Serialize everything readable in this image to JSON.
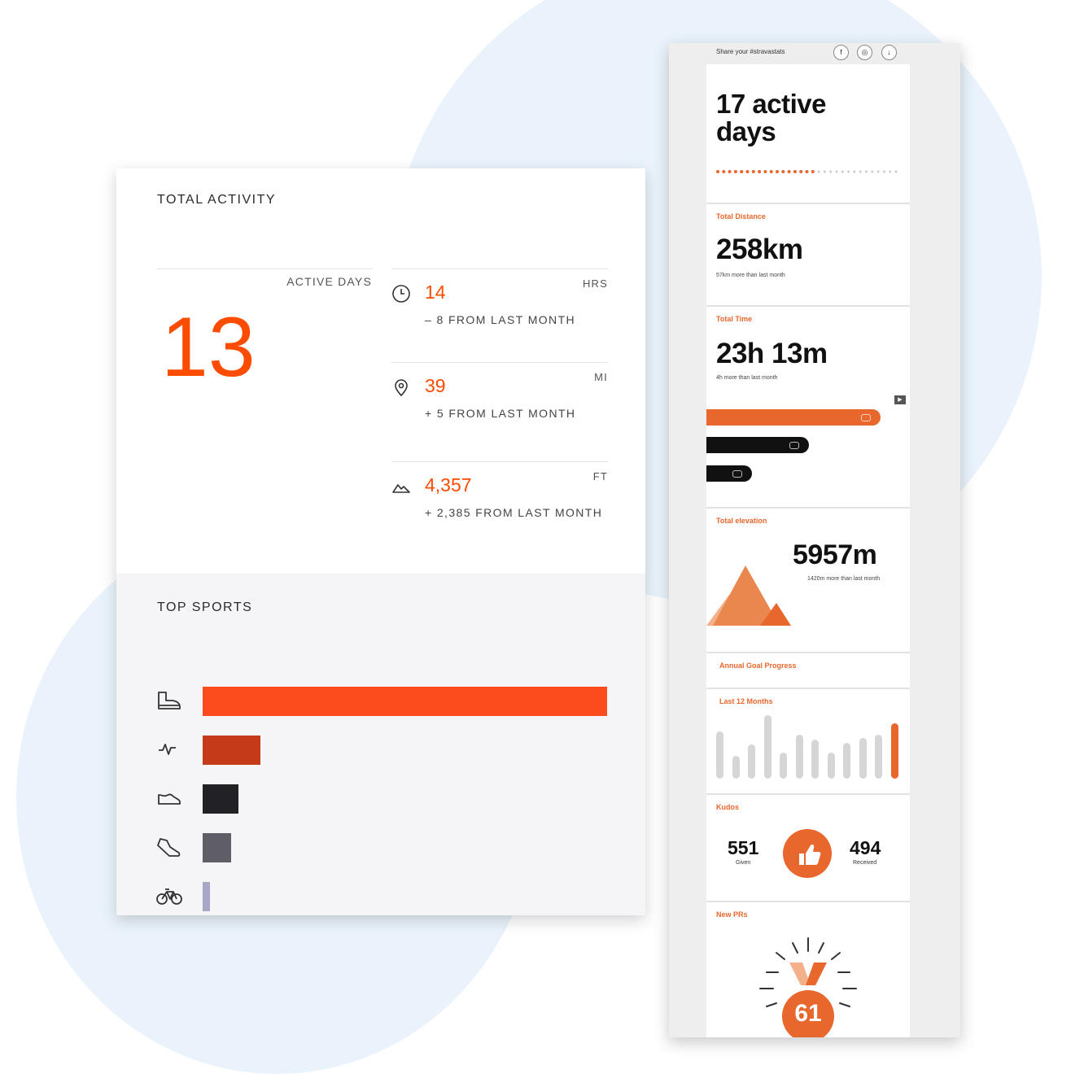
{
  "total_activity": {
    "title": "TOTAL ACTIVITY",
    "active_days_label": "ACTIVE DAYS",
    "active_days_value": "13",
    "stats": [
      {
        "icon": "clock-icon",
        "value": "14",
        "unit": "HRS",
        "delta": "– 8 FROM LAST MONTH"
      },
      {
        "icon": "location-pin-icon",
        "value": "39",
        "unit": "MI",
        "delta": "+ 5 FROM LAST MONTH"
      },
      {
        "icon": "mountain-icon",
        "value": "4,357",
        "unit": "FT",
        "delta": "+ 2,385 FROM LAST MONTH"
      }
    ]
  },
  "top_sports": {
    "title": "TOP SPORTS",
    "items": [
      {
        "icon": "hiking-boot-icon",
        "share": 1.0,
        "color": "#fc4c1e"
      },
      {
        "icon": "activity-pulse-icon",
        "share": 0.142,
        "color": "#c53b1a"
      },
      {
        "icon": "shoe-icon",
        "share": 0.088,
        "color": "#222226"
      },
      {
        "icon": "running-shoe-icon",
        "share": 0.07,
        "color": "#5f5e67"
      },
      {
        "icon": "bicycle-icon",
        "share": 0.018,
        "color": "#a9a7c6"
      }
    ]
  },
  "stats_card": {
    "share_text": "Share your #stravastats",
    "share_buttons": [
      {
        "icon": "facebook-icon",
        "glyph": "f"
      },
      {
        "icon": "instagram-icon",
        "glyph": "◎"
      },
      {
        "icon": "download-icon",
        "glyph": "↓"
      }
    ],
    "active_days_line1": "17 active",
    "active_days_line2": "days",
    "active_days_filled": 17,
    "active_days_total": 31,
    "distance": {
      "label": "Total Distance",
      "value": "258km",
      "note": "57km more than last month"
    },
    "time": {
      "label": "Total Time",
      "value": "23h 13m",
      "note": "4h more than last month",
      "bars": [
        {
          "share": 1.0,
          "color": "#e8672c"
        },
        {
          "share": 0.59,
          "color": "#111111"
        },
        {
          "share": 0.26,
          "color": "#111111"
        }
      ]
    },
    "elevation": {
      "label": "Total elevation",
      "value": "5957m",
      "note": "1420m more than last month"
    },
    "annual_goal": {
      "label": "Annual Goal Progress"
    },
    "last_12_months": {
      "label": "Last 12 Months",
      "values": [
        0.72,
        0.35,
        0.52,
        0.98,
        0.4,
        0.68,
        0.6,
        0.4,
        0.55,
        0.62,
        0.68,
        0.85
      ],
      "highlight_color": "#e8672c",
      "bar_color": "#d6d6d6"
    },
    "kudos": {
      "label": "Kudos",
      "given": "551",
      "given_label": "Given",
      "received": "494",
      "received_label": "Received"
    },
    "new_prs": {
      "label": "New PRs",
      "value": "61"
    }
  },
  "colors": {
    "accent": "#fc4c02",
    "strava_orange": "#e8672c"
  }
}
